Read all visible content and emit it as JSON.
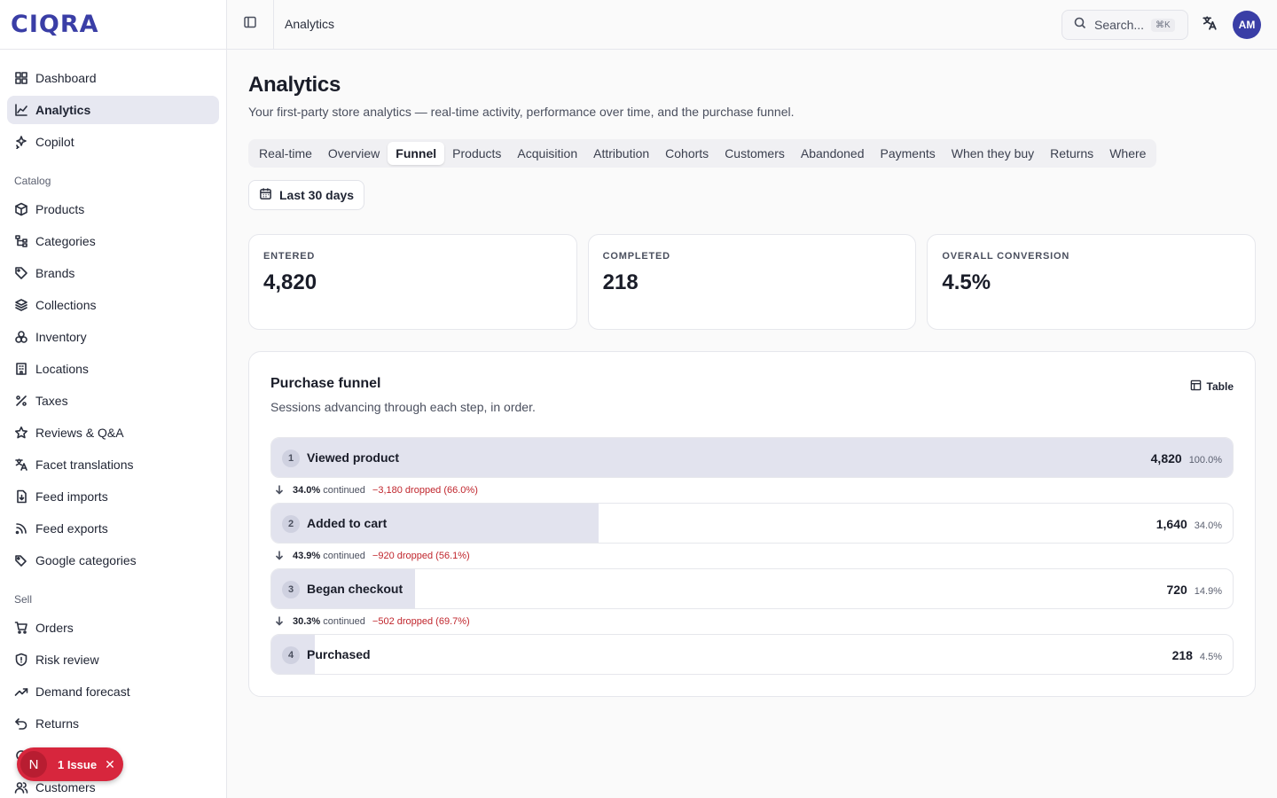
{
  "brand": {
    "logo": "CIQRA"
  },
  "sidebar": {
    "top_items": [
      {
        "label": "Dashboard",
        "icon": "dashboard-icon"
      },
      {
        "label": "Analytics",
        "icon": "chart-line-icon",
        "active": true
      },
      {
        "label": "Copilot",
        "icon": "sparkles-icon"
      }
    ],
    "catalog_label": "Catalog",
    "catalog_items": [
      {
        "label": "Products",
        "icon": "package-icon"
      },
      {
        "label": "Categories",
        "icon": "tree-icon"
      },
      {
        "label": "Brands",
        "icon": "tag-icon"
      },
      {
        "label": "Collections",
        "icon": "layers-icon"
      },
      {
        "label": "Inventory",
        "icon": "boxes-icon"
      },
      {
        "label": "Locations",
        "icon": "building-icon"
      },
      {
        "label": "Taxes",
        "icon": "percent-icon"
      },
      {
        "label": "Reviews & Q&A",
        "icon": "star-icon"
      },
      {
        "label": "Facet translations",
        "icon": "translate-icon"
      },
      {
        "label": "Feed imports",
        "icon": "file-import-icon"
      },
      {
        "label": "Feed exports",
        "icon": "rss-icon"
      },
      {
        "label": "Google categories",
        "icon": "tags-icon"
      }
    ],
    "sell_label": "Sell",
    "sell_items": [
      {
        "label": "Orders",
        "icon": "cart-icon"
      },
      {
        "label": "Risk review",
        "icon": "shield-icon"
      },
      {
        "label": "Demand forecast",
        "icon": "trend-up-icon"
      },
      {
        "label": "Returns",
        "icon": "undo-icon"
      },
      {
        "label": "",
        "icon": "hidden-item-icon"
      },
      {
        "label": "Customers",
        "icon": "users-icon"
      }
    ]
  },
  "topbar": {
    "breadcrumb": "Analytics",
    "search_placeholder": "Search...",
    "search_shortcut": "⌘K",
    "avatar_initials": "AM"
  },
  "page": {
    "title": "Analytics",
    "subtitle": "Your first-party store analytics — real-time activity, performance over time, and the purchase funnel.",
    "tabs": [
      {
        "label": "Real-time"
      },
      {
        "label": "Overview"
      },
      {
        "label": "Funnel",
        "active": true
      },
      {
        "label": "Products"
      },
      {
        "label": "Acquisition"
      },
      {
        "label": "Attribution"
      },
      {
        "label": "Cohorts"
      },
      {
        "label": "Customers"
      },
      {
        "label": "Abandoned"
      },
      {
        "label": "Payments"
      },
      {
        "label": "When they buy"
      },
      {
        "label": "Returns"
      },
      {
        "label": "Where"
      }
    ],
    "range_label": "Last 30 days"
  },
  "kpis": [
    {
      "label": "ENTERED",
      "value": "4,820"
    },
    {
      "label": "COMPLETED",
      "value": "218"
    },
    {
      "label": "OVERALL CONVERSION",
      "value": "4.5%"
    }
  ],
  "funnel": {
    "title": "Purchase funnel",
    "subtitle": "Sessions advancing through each step, in order.",
    "table_label": "Table",
    "steps": [
      {
        "num": "1",
        "name": "Viewed product",
        "count": "4,820",
        "pct": "100.0%",
        "fraction": 1.0
      },
      {
        "num": "2",
        "name": "Added to cart",
        "count": "1,640",
        "pct": "34.0%",
        "fraction": 0.34
      },
      {
        "num": "3",
        "name": "Began checkout",
        "count": "720",
        "pct": "14.9%",
        "fraction": 0.149
      },
      {
        "num": "4",
        "name": "Purchased",
        "count": "218",
        "pct": "4.5%",
        "fraction": 0.045
      }
    ],
    "transitions": [
      {
        "continued": "34.0%",
        "continued_label": "continued",
        "dropped": "−3,180 dropped (66.0%)"
      },
      {
        "continued": "43.9%",
        "continued_label": "continued",
        "dropped": "−920 dropped (56.1%)"
      },
      {
        "continued": "30.3%",
        "continued_label": "continued",
        "dropped": "−502 dropped (69.7%)"
      }
    ]
  },
  "issue_badge": {
    "letter": "N",
    "label": "1 Issue",
    "close": "✕"
  },
  "colors": {
    "accent": "#3a3ea6",
    "danger": "#c0262d",
    "badge": "#d7263d",
    "bar_fill": "#e2e3ee"
  }
}
